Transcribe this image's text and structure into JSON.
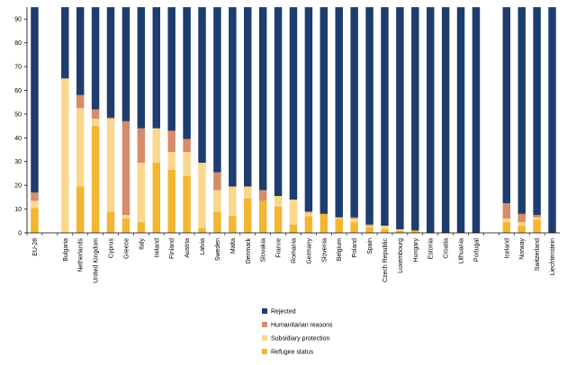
{
  "chart_data": {
    "type": "bar",
    "stacked": true,
    "percent_stacked": true,
    "title": "",
    "xlabel": "",
    "ylabel": "",
    "ylim": [
      0,
      95
    ],
    "yticks": [
      0,
      10,
      20,
      30,
      40,
      50,
      60,
      70,
      80,
      90
    ],
    "grid": false,
    "legend_position": "bottom",
    "categories": [
      "EU-28",
      "",
      "Bulgaria",
      "Netherlands",
      "United Kingdom",
      "Cyprus",
      "Greece",
      "Italy",
      "Ireland",
      "Finland",
      "Austria",
      "Latvia",
      "Sweden",
      "Malta",
      "Denmark",
      "Slovakia",
      "France",
      "Romania",
      "Germany",
      "Slovenia",
      "Belgium",
      "Poland",
      "Spain",
      "Czech Republic",
      "Luxembourg",
      "Hungary",
      "Estonia",
      "Croatia",
      "Lithuania",
      "Portugal",
      "",
      "Iceland",
      "Norway",
      "Switzerland",
      "Liechtenstein"
    ],
    "series": [
      {
        "name": "Refugee status",
        "color": "#F2B632",
        "values": [
          10.5,
          null,
          0,
          19.5,
          45,
          9,
          6,
          4.5,
          29.5,
          26.5,
          24,
          2,
          9,
          7,
          14.5,
          13.5,
          11,
          3.5,
          7,
          8,
          6,
          4.5,
          2.5,
          1.5,
          1,
          1,
          0,
          0,
          0,
          0,
          null,
          4.5,
          3,
          5.5,
          0
        ]
      },
      {
        "name": "Subsidiary protection",
        "color": "#F9D78C",
        "values": [
          3,
          null,
          65,
          33,
          3,
          39,
          1.5,
          25,
          14.5,
          7.5,
          10,
          27.5,
          9,
          12.5,
          5,
          0,
          4.5,
          10.5,
          1.5,
          0,
          0.5,
          1.5,
          0.5,
          1.5,
          0.5,
          0,
          0,
          0,
          0,
          0,
          null,
          1.5,
          1.5,
          1,
          0
        ]
      },
      {
        "name": "Humanitarian reasons",
        "color": "#D68B6B",
        "values": [
          3.5,
          null,
          0,
          5.5,
          4,
          0.5,
          39.5,
          14.5,
          0,
          9,
          5.5,
          0,
          7.5,
          0,
          0,
          4.5,
          0,
          0,
          0.5,
          0,
          0,
          0.5,
          0.5,
          0,
          0,
          0,
          0,
          0,
          0,
          0,
          null,
          6.5,
          3.5,
          1,
          0
        ]
      },
      {
        "name": "Rejected",
        "color": "#1F3C6E",
        "values": [
          83,
          null,
          35,
          42,
          48,
          51.5,
          53,
          56,
          56,
          57,
          60.5,
          70.5,
          74.5,
          80.5,
          80.5,
          82,
          84.5,
          86,
          91,
          92,
          93.5,
          93.5,
          96.5,
          97,
          98.5,
          99,
          100,
          100,
          100,
          100,
          null,
          87.5,
          92,
          92.5,
          100
        ]
      }
    ]
  },
  "legend": {
    "items": [
      {
        "label": "Rejected",
        "color": "#1F3C6E"
      },
      {
        "label": "Humanitarian reasons",
        "color": "#D68B6B"
      },
      {
        "label": "Subsidiary protection",
        "color": "#F9D78C"
      },
      {
        "label": "Refugee status",
        "color": "#F2B632"
      }
    ]
  }
}
